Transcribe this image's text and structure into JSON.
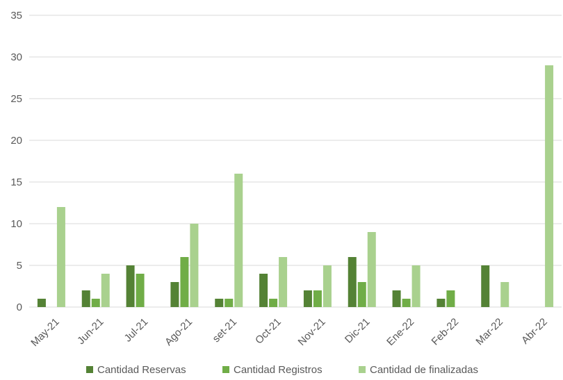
{
  "chart_data": {
    "type": "bar",
    "categories": [
      "May-21",
      "Jun-21",
      "Jul-21",
      "Ago-21",
      "set-21",
      "Oct-21",
      "Nov-21",
      "Dic-21",
      "Ene-22",
      "Feb-22",
      "Mar-22",
      "Abr-22"
    ],
    "series": [
      {
        "name": "Cantidad Reservas",
        "color": "#548235",
        "values": [
          1,
          2,
          5,
          3,
          1,
          4,
          2,
          6,
          2,
          1,
          5,
          0
        ]
      },
      {
        "name": "Cantidad Registros",
        "color": "#70ad47",
        "values": [
          0,
          1,
          4,
          6,
          1,
          1,
          2,
          3,
          1,
          2,
          0,
          0
        ]
      },
      {
        "name": "Cantidad de finalizadas",
        "color": "#a9d18e",
        "values": [
          12,
          4,
          0,
          10,
          16,
          6,
          5,
          9,
          5,
          0,
          3,
          29
        ]
      }
    ],
    "title": "",
    "xlabel": "",
    "ylabel": "",
    "ylim": [
      0,
      35
    ],
    "yticks": [
      0,
      5,
      10,
      15,
      20,
      25,
      30,
      35
    ],
    "grid": true,
    "legend_position": "bottom"
  }
}
